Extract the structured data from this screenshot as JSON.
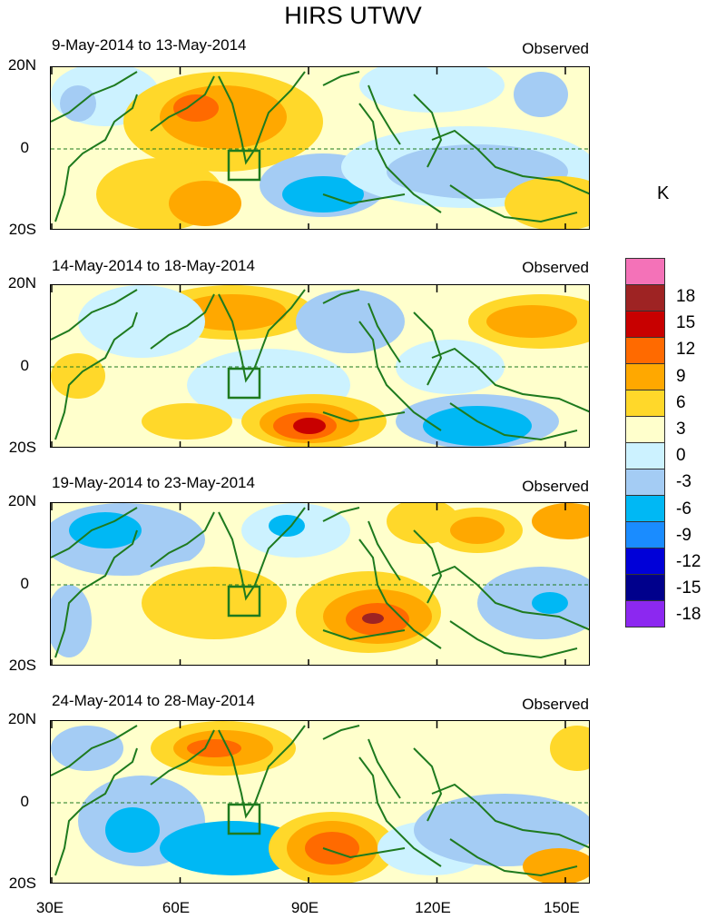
{
  "title": "HIRS UTWV",
  "panels": [
    {
      "date_range": "9-May-2014 to 13-May-2014",
      "label": "Observed"
    },
    {
      "date_range": "14-May-2014 to 18-May-2014",
      "label": "Observed"
    },
    {
      "date_range": "19-May-2014 to 23-May-2014",
      "label": "Observed"
    },
    {
      "date_range": "24-May-2014 to 28-May-2014",
      "label": "Observed"
    }
  ],
  "lat_labels": [
    "20N",
    "0",
    "20S"
  ],
  "lon_labels": [
    "30E",
    "60E",
    "90E",
    "120E",
    "150E"
  ],
  "colorbar": {
    "unit": "K",
    "labels": [
      "18",
      "15",
      "12",
      "9",
      "6",
      "3",
      "0",
      "-3",
      "-6",
      "-9",
      "-12",
      "-15",
      "-18"
    ],
    "colors": [
      "#f472b8",
      "#9e2323",
      "#c80000",
      "#ff6a00",
      "#ffa800",
      "#ffd82a",
      "#ffffcc",
      "#ccf2ff",
      "#a4ccf4",
      "#00b8f4",
      "#1a8cff",
      "#0000d8",
      "#00008c",
      "#8c28f0"
    ]
  },
  "colors": {
    "coast": "#1e7a1e",
    "pos1": "#ffffcc",
    "pos2": "#ffd82a",
    "pos3": "#ffa800",
    "pos4": "#ff6a00",
    "pos5": "#c80000",
    "pos6": "#9e2323",
    "neg1": "#ccf2ff",
    "neg2": "#a4ccf4",
    "neg3": "#00b8f4"
  }
}
